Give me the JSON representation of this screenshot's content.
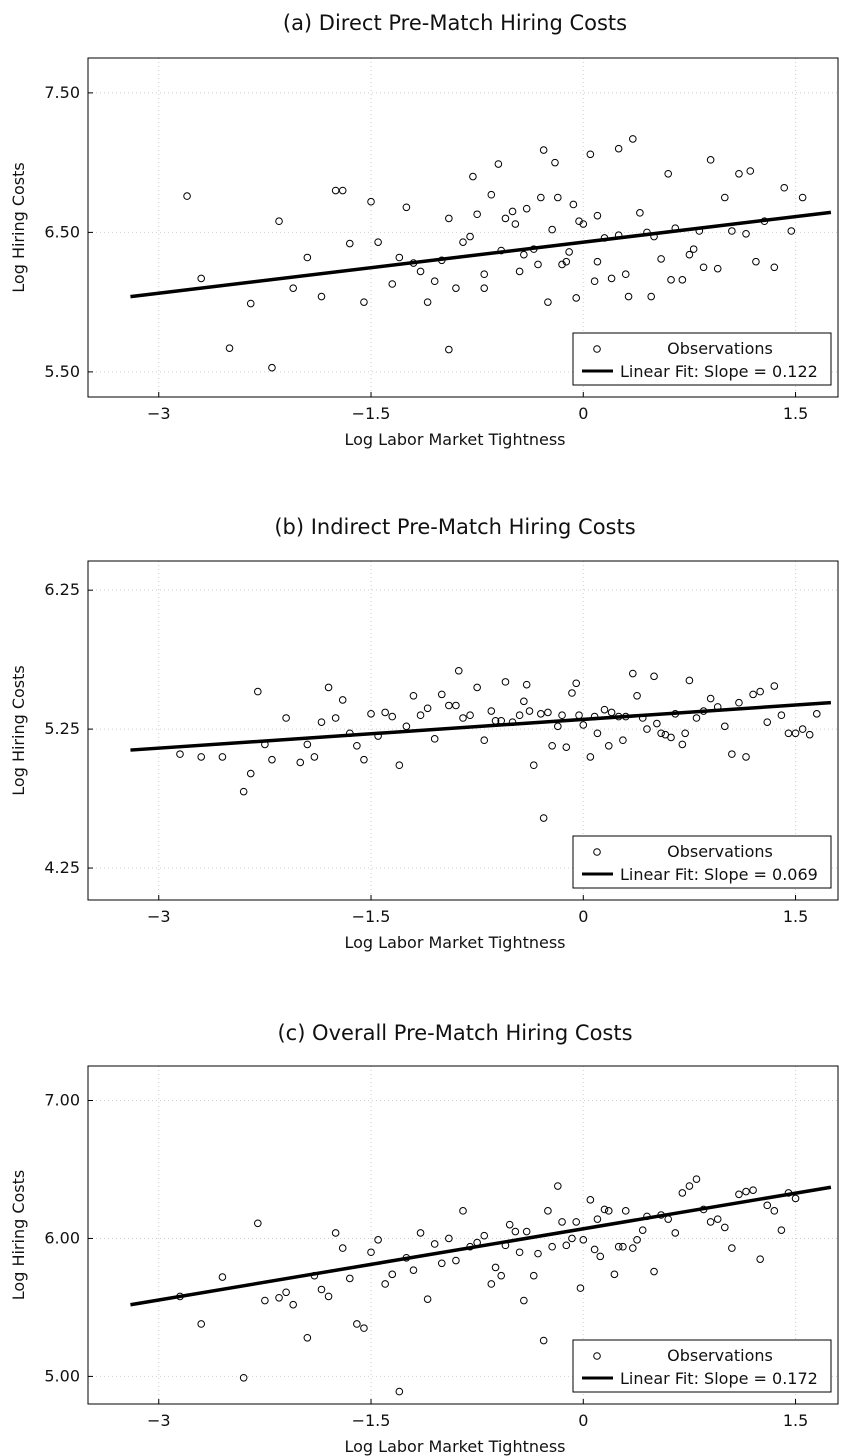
{
  "chart_data": [
    {
      "type": "scatter",
      "title": "(a) Direct Pre-Match Hiring Costs",
      "xlabel": "Log Labor Market Tightness",
      "ylabel": "Log Hiring Costs",
      "xlim": [
        -3.5,
        1.8
      ],
      "ylim": [
        5.32,
        7.75
      ],
      "xticks": [
        -3,
        -1.5,
        0,
        1.5
      ],
      "xtick_labels": [
        "−3",
        "−1.5",
        "0",
        "1.5"
      ],
      "yticks": [
        5.5,
        6.5,
        7.5
      ],
      "ytick_labels": [
        "5.50",
        "6.50",
        "7.50"
      ],
      "grid": true,
      "legend_position": "bottom-right",
      "legend": [
        "Observations",
        "Linear Fit: Slope = 0.122"
      ],
      "fit": {
        "slope": 0.122,
        "x_range": [
          -3.2,
          1.75
        ],
        "intercept": 6.43
      },
      "points": [
        [
          -2.8,
          6.76
        ],
        [
          -2.7,
          6.17
        ],
        [
          -2.5,
          5.67
        ],
        [
          -2.35,
          5.99
        ],
        [
          -2.2,
          5.53
        ],
        [
          -2.15,
          6.58
        ],
        [
          -2.05,
          6.1
        ],
        [
          -1.95,
          6.32
        ],
        [
          -1.85,
          6.04
        ],
        [
          -1.75,
          6.8
        ],
        [
          -1.7,
          6.8
        ],
        [
          -1.65,
          6.42
        ],
        [
          -1.55,
          6.0
        ],
        [
          -1.5,
          6.72
        ],
        [
          -1.45,
          6.43
        ],
        [
          -1.35,
          6.13
        ],
        [
          -1.3,
          6.32
        ],
        [
          -1.25,
          6.68
        ],
        [
          -1.2,
          6.28
        ],
        [
          -1.15,
          6.22
        ],
        [
          -1.1,
          6.0
        ],
        [
          -1.05,
          6.15
        ],
        [
          -1.0,
          6.3
        ],
        [
          -0.95,
          5.66
        ],
        [
          -0.95,
          6.6
        ],
        [
          -0.9,
          6.1
        ],
        [
          -0.85,
          6.43
        ],
        [
          -0.8,
          6.47
        ],
        [
          -0.78,
          6.9
        ],
        [
          -0.75,
          6.63
        ],
        [
          -0.7,
          6.1
        ],
        [
          -0.7,
          6.2
        ],
        [
          -0.65,
          6.77
        ],
        [
          -0.6,
          6.99
        ],
        [
          -0.58,
          6.37
        ],
        [
          -0.55,
          6.6
        ],
        [
          -0.5,
          6.65
        ],
        [
          -0.48,
          6.56
        ],
        [
          -0.45,
          6.22
        ],
        [
          -0.42,
          6.34
        ],
        [
          -0.4,
          6.67
        ],
        [
          -0.35,
          6.38
        ],
        [
          -0.32,
          6.27
        ],
        [
          -0.3,
          6.75
        ],
        [
          -0.28,
          7.09
        ],
        [
          -0.25,
          6.0
        ],
        [
          -0.22,
          6.52
        ],
        [
          -0.2,
          7.0
        ],
        [
          -0.18,
          6.75
        ],
        [
          -0.15,
          6.27
        ],
        [
          -0.12,
          6.29
        ],
        [
          -0.1,
          6.36
        ],
        [
          -0.07,
          6.7
        ],
        [
          -0.05,
          6.03
        ],
        [
          -0.03,
          6.58
        ],
        [
          0.0,
          6.56
        ],
        [
          0.05,
          7.06
        ],
        [
          0.08,
          6.15
        ],
        [
          0.1,
          6.62
        ],
        [
          0.1,
          6.29
        ],
        [
          0.15,
          6.46
        ],
        [
          0.2,
          6.17
        ],
        [
          0.25,
          6.48
        ],
        [
          0.25,
          7.1
        ],
        [
          0.3,
          6.2
        ],
        [
          0.32,
          6.04
        ],
        [
          0.35,
          7.17
        ],
        [
          0.4,
          6.64
        ],
        [
          0.45,
          6.5
        ],
        [
          0.48,
          6.04
        ],
        [
          0.5,
          6.47
        ],
        [
          0.55,
          6.31
        ],
        [
          0.6,
          6.92
        ],
        [
          0.62,
          6.16
        ],
        [
          0.65,
          6.53
        ],
        [
          0.7,
          6.16
        ],
        [
          0.75,
          6.34
        ],
        [
          0.78,
          6.38
        ],
        [
          0.82,
          6.51
        ],
        [
          0.85,
          6.25
        ],
        [
          0.9,
          7.02
        ],
        [
          0.95,
          6.24
        ],
        [
          1.0,
          6.75
        ],
        [
          1.05,
          6.51
        ],
        [
          1.1,
          6.92
        ],
        [
          1.15,
          6.49
        ],
        [
          1.18,
          6.94
        ],
        [
          1.22,
          6.29
        ],
        [
          1.28,
          6.58
        ],
        [
          1.35,
          6.25
        ],
        [
          1.42,
          6.82
        ],
        [
          1.47,
          6.51
        ],
        [
          1.55,
          6.75
        ]
      ]
    },
    {
      "type": "scatter",
      "title": "(b) Indirect Pre-Match Hiring Costs",
      "xlabel": "Log Labor Market Tightness",
      "ylabel": "Log Hiring Costs",
      "xlim": [
        -3.5,
        1.8
      ],
      "ylim": [
        4.02,
        6.46
      ],
      "xticks": [
        -3,
        -1.5,
        0,
        1.5
      ],
      "xtick_labels": [
        "−3",
        "−1.5",
        "0",
        "1.5"
      ],
      "yticks": [
        4.25,
        5.25,
        6.25
      ],
      "ytick_labels": [
        "4.25",
        "5.25",
        "6.25"
      ],
      "grid": true,
      "legend_position": "bottom-right",
      "legend": [
        "Observations",
        "Linear Fit: Slope = 0.069"
      ],
      "fit": {
        "slope": 0.069,
        "x_range": [
          -3.2,
          1.75
        ],
        "intercept": 5.32
      },
      "points": [
        [
          -2.85,
          5.07
        ],
        [
          -2.7,
          5.05
        ],
        [
          -2.55,
          5.05
        ],
        [
          -2.4,
          4.8
        ],
        [
          -2.35,
          4.93
        ],
        [
          -2.3,
          5.52
        ],
        [
          -2.25,
          5.14
        ],
        [
          -2.2,
          5.03
        ],
        [
          -2.1,
          5.33
        ],
        [
          -2.0,
          5.01
        ],
        [
          -1.95,
          5.14
        ],
        [
          -1.9,
          5.05
        ],
        [
          -1.85,
          5.3
        ],
        [
          -1.8,
          5.55
        ],
        [
          -1.75,
          5.33
        ],
        [
          -1.7,
          5.46
        ],
        [
          -1.65,
          5.22
        ],
        [
          -1.6,
          5.13
        ],
        [
          -1.55,
          5.03
        ],
        [
          -1.5,
          5.36
        ],
        [
          -1.45,
          5.2
        ],
        [
          -1.4,
          5.37
        ],
        [
          -1.35,
          5.34
        ],
        [
          -1.3,
          4.99
        ],
        [
          -1.25,
          5.27
        ],
        [
          -1.2,
          5.49
        ],
        [
          -1.15,
          5.35
        ],
        [
          -1.1,
          5.4
        ],
        [
          -1.05,
          5.18
        ],
        [
          -1.0,
          5.5
        ],
        [
          -0.95,
          5.42
        ],
        [
          -0.9,
          5.42
        ],
        [
          -0.88,
          5.67
        ],
        [
          -0.85,
          5.33
        ],
        [
          -0.8,
          5.35
        ],
        [
          -0.75,
          5.55
        ],
        [
          -0.7,
          5.17
        ],
        [
          -0.65,
          5.38
        ],
        [
          -0.62,
          5.31
        ],
        [
          -0.58,
          5.31
        ],
        [
          -0.55,
          5.59
        ],
        [
          -0.5,
          5.3
        ],
        [
          -0.45,
          5.35
        ],
        [
          -0.42,
          5.45
        ],
        [
          -0.4,
          5.57
        ],
        [
          -0.38,
          5.38
        ],
        [
          -0.35,
          4.99
        ],
        [
          -0.3,
          5.36
        ],
        [
          -0.28,
          4.61
        ],
        [
          -0.25,
          5.37
        ],
        [
          -0.22,
          5.13
        ],
        [
          -0.18,
          5.27
        ],
        [
          -0.15,
          5.35
        ],
        [
          -0.12,
          5.12
        ],
        [
          -0.08,
          5.51
        ],
        [
          -0.05,
          5.58
        ],
        [
          -0.03,
          5.35
        ],
        [
          0.0,
          5.28
        ],
        [
          0.05,
          5.05
        ],
        [
          0.08,
          5.34
        ],
        [
          0.1,
          5.22
        ],
        [
          0.15,
          5.39
        ],
        [
          0.18,
          5.13
        ],
        [
          0.2,
          5.37
        ],
        [
          0.25,
          5.34
        ],
        [
          0.28,
          5.17
        ],
        [
          0.3,
          5.34
        ],
        [
          0.35,
          5.65
        ],
        [
          0.38,
          5.49
        ],
        [
          0.42,
          5.33
        ],
        [
          0.45,
          5.25
        ],
        [
          0.5,
          5.63
        ],
        [
          0.52,
          5.29
        ],
        [
          0.55,
          5.22
        ],
        [
          0.58,
          5.21
        ],
        [
          0.62,
          5.19
        ],
        [
          0.65,
          5.36
        ],
        [
          0.7,
          5.14
        ],
        [
          0.72,
          5.22
        ],
        [
          0.75,
          5.6
        ],
        [
          0.8,
          5.33
        ],
        [
          0.85,
          5.38
        ],
        [
          0.9,
          5.47
        ],
        [
          0.95,
          5.41
        ],
        [
          1.0,
          5.27
        ],
        [
          1.05,
          5.07
        ],
        [
          1.1,
          5.44
        ],
        [
          1.15,
          5.05
        ],
        [
          1.2,
          5.5
        ],
        [
          1.25,
          5.52
        ],
        [
          1.3,
          5.3
        ],
        [
          1.35,
          5.56
        ],
        [
          1.4,
          5.35
        ],
        [
          1.45,
          5.22
        ],
        [
          1.5,
          5.22
        ],
        [
          1.55,
          5.25
        ],
        [
          1.6,
          5.21
        ],
        [
          1.65,
          5.36
        ]
      ]
    },
    {
      "type": "scatter",
      "title": "(c) Overall Pre-Match Hiring Costs",
      "xlabel": "Log Labor Market Tightness",
      "ylabel": "Log Hiring Costs",
      "xlim": [
        -3.5,
        1.8
      ],
      "ylim": [
        4.8,
        7.25
      ],
      "xticks": [
        -3,
        -1.5,
        0,
        1.5
      ],
      "xtick_labels": [
        "−3",
        "−1.5",
        "0",
        "1.5"
      ],
      "yticks": [
        5.0,
        6.0,
        7.0
      ],
      "ytick_labels": [
        "5.00",
        "6.00",
        "7.00"
      ],
      "grid": true,
      "legend_position": "bottom-right",
      "legend": [
        "Observations",
        "Linear Fit: Slope = 0.172"
      ],
      "fit": {
        "slope": 0.172,
        "x_range": [
          -3.2,
          1.75
        ],
        "intercept": 6.07
      },
      "points": [
        [
          -2.85,
          5.58
        ],
        [
          -2.7,
          5.38
        ],
        [
          -2.55,
          5.72
        ],
        [
          -2.4,
          4.99
        ],
        [
          -2.3,
          6.11
        ],
        [
          -2.25,
          5.55
        ],
        [
          -2.15,
          5.57
        ],
        [
          -2.1,
          5.61
        ],
        [
          -2.05,
          5.52
        ],
        [
          -1.95,
          5.28
        ],
        [
          -1.9,
          5.73
        ],
        [
          -1.85,
          5.63
        ],
        [
          -1.8,
          5.58
        ],
        [
          -1.75,
          6.04
        ],
        [
          -1.7,
          5.93
        ],
        [
          -1.65,
          5.71
        ],
        [
          -1.6,
          5.38
        ],
        [
          -1.55,
          5.35
        ],
        [
          -1.5,
          5.9
        ],
        [
          -1.45,
          5.99
        ],
        [
          -1.4,
          5.67
        ],
        [
          -1.35,
          5.74
        ],
        [
          -1.3,
          4.89
        ],
        [
          -1.25,
          5.86
        ],
        [
          -1.2,
          5.77
        ],
        [
          -1.15,
          6.04
        ],
        [
          -1.1,
          5.56
        ],
        [
          -1.05,
          5.96
        ],
        [
          -1.0,
          5.82
        ],
        [
          -0.95,
          6.0
        ],
        [
          -0.9,
          5.84
        ],
        [
          -0.85,
          6.2
        ],
        [
          -0.8,
          5.94
        ],
        [
          -0.75,
          5.97
        ],
        [
          -0.7,
          6.02
        ],
        [
          -0.65,
          5.67
        ],
        [
          -0.62,
          5.79
        ],
        [
          -0.58,
          5.73
        ],
        [
          -0.55,
          5.95
        ],
        [
          -0.52,
          6.1
        ],
        [
          -0.48,
          6.05
        ],
        [
          -0.45,
          5.9
        ],
        [
          -0.42,
          5.55
        ],
        [
          -0.4,
          6.05
        ],
        [
          -0.35,
          5.73
        ],
        [
          -0.32,
          5.89
        ],
        [
          -0.28,
          5.26
        ],
        [
          -0.25,
          6.2
        ],
        [
          -0.22,
          5.94
        ],
        [
          -0.18,
          6.38
        ],
        [
          -0.15,
          6.12
        ],
        [
          -0.12,
          5.95
        ],
        [
          -0.08,
          6.0
        ],
        [
          -0.05,
          6.12
        ],
        [
          -0.02,
          5.64
        ],
        [
          0.0,
          5.99
        ],
        [
          0.05,
          6.28
        ],
        [
          0.08,
          5.92
        ],
        [
          0.1,
          6.14
        ],
        [
          0.12,
          5.87
        ],
        [
          0.15,
          6.21
        ],
        [
          0.18,
          6.2
        ],
        [
          0.22,
          5.74
        ],
        [
          0.25,
          5.94
        ],
        [
          0.28,
          5.94
        ],
        [
          0.3,
          6.2
        ],
        [
          0.35,
          5.93
        ],
        [
          0.38,
          5.99
        ],
        [
          0.42,
          6.06
        ],
        [
          0.45,
          6.16
        ],
        [
          0.5,
          5.76
        ],
        [
          0.55,
          6.17
        ],
        [
          0.6,
          6.14
        ],
        [
          0.65,
          6.04
        ],
        [
          0.7,
          6.33
        ],
        [
          0.75,
          6.38
        ],
        [
          0.8,
          6.43
        ],
        [
          0.85,
          6.21
        ],
        [
          0.9,
          6.12
        ],
        [
          0.95,
          6.14
        ],
        [
          1.0,
          6.08
        ],
        [
          1.05,
          5.93
        ],
        [
          1.1,
          6.32
        ],
        [
          1.15,
          6.34
        ],
        [
          1.2,
          6.35
        ],
        [
          1.25,
          5.85
        ],
        [
          1.3,
          6.24
        ],
        [
          1.35,
          6.2
        ],
        [
          1.4,
          6.06
        ],
        [
          1.45,
          6.33
        ],
        [
          1.5,
          6.29
        ]
      ]
    }
  ]
}
